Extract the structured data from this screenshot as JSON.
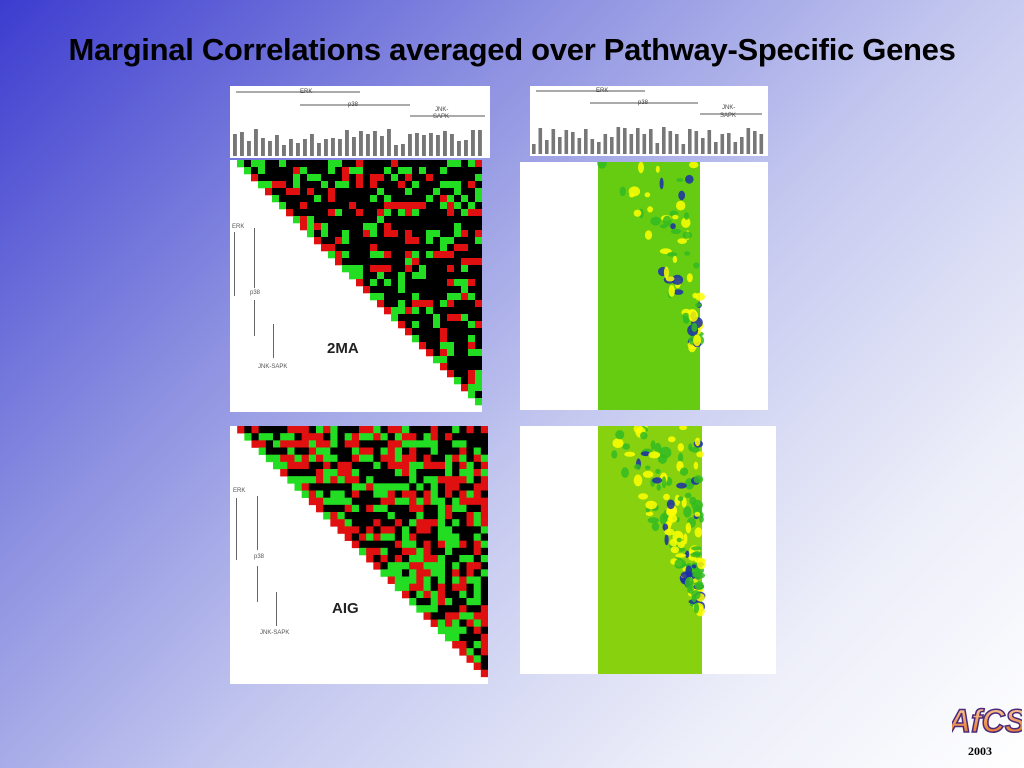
{
  "slide": {
    "title": "Marginal Correlations averaged over Pathway-Specific Genes",
    "year": "2003",
    "logo_text": "AfCS"
  },
  "groups": {
    "erk": "ERK",
    "p38": "p38",
    "jnk_top": "JNK-",
    "jnk_bottom": "SAPK",
    "jnk_sapk": "JNK-SAPK"
  },
  "panels": {
    "top_left_label": "2MA",
    "bottom_left_label": "AIG"
  },
  "colors": {
    "heat_red": "#e01010",
    "heat_green": "#22dd22",
    "heat_black": "#000000",
    "smooth_green": "#66cc11",
    "smooth_yellow": "#ffff00",
    "smooth_blue": "#1a2ea8"
  }
}
